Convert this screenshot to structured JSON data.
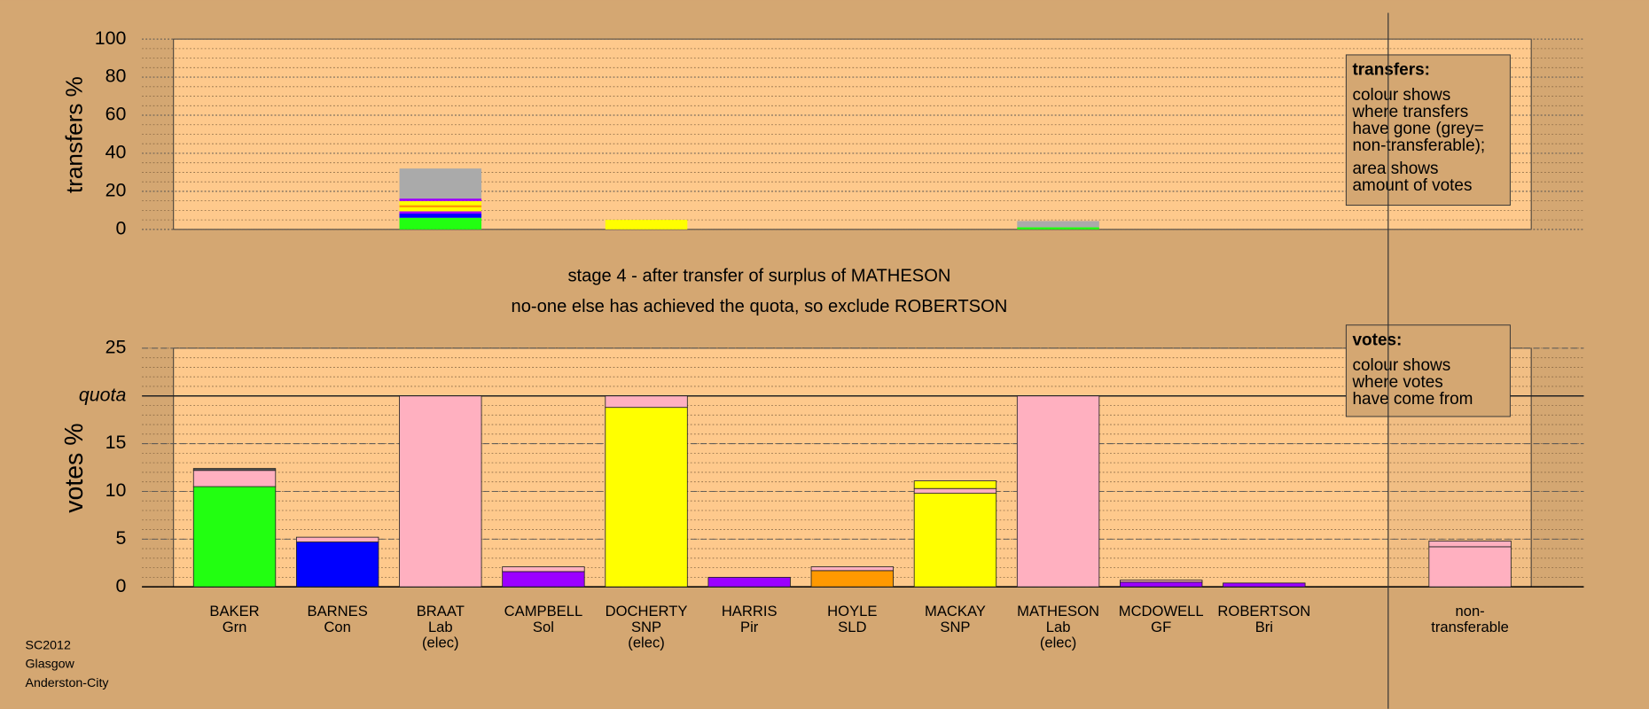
{
  "chart_data": [
    {
      "type": "stacked_bar",
      "y_label": "transfers %",
      "ylim": [
        0,
        100
      ],
      "yticks": [
        0,
        20,
        40,
        60,
        80,
        100
      ],
      "grid": true,
      "minor_grid_step": 5,
      "legend": {
        "title": "transfers:",
        "lines": [
          "colour shows",
          "where transfers",
          "have gone (grey=",
          "non-transferable);",
          "area shows",
          "amount of votes"
        ]
      },
      "stacks": [
        null,
        null,
        [
          {
            "value": 6.1,
            "color": "#22ff11"
          },
          {
            "value": 2.2,
            "color": "#0000ff"
          },
          {
            "value": 1.2,
            "color": "#9b00ff"
          },
          {
            "value": 2.1,
            "color": "#ffff00"
          },
          {
            "value": 1.1,
            "color": "#ff9900"
          },
          {
            "value": 2.2,
            "color": "#ffff00"
          },
          {
            "value": 1.3,
            "color": "#9b00ff"
          },
          {
            "value": 15.8,
            "color": "#aaaaaa"
          }
        ],
        null,
        [
          {
            "value": 5,
            "color": "#ffff00"
          }
        ],
        null,
        null,
        null,
        [
          {
            "value": 1.1,
            "color": "#22ff11"
          },
          {
            "value": 3.3,
            "color": "#aaaaaa"
          }
        ],
        null,
        null,
        null,
        null
      ]
    },
    {
      "type": "stacked_bar",
      "y_label": "votes %",
      "ylim": [
        0,
        25
      ],
      "yticks": [
        0,
        5,
        10,
        15,
        {
          "value": 20,
          "label": "quota"
        },
        25
      ],
      "grid": true,
      "minor_grid_step": 1,
      "legend": {
        "title": "votes:",
        "lines": [
          "colour shows",
          "where votes",
          "have come from"
        ]
      },
      "categories": [
        [
          "BAKER",
          "Grn"
        ],
        [
          "BARNES",
          "Con"
        ],
        [
          "BRAAT",
          "Lab",
          "(elec)"
        ],
        [
          "CAMPBELL",
          "Sol"
        ],
        [
          "DOCHERTY",
          "SNP",
          "(elec)"
        ],
        [
          "HARRIS",
          "Pir"
        ],
        [
          "HOYLE",
          "SLD"
        ],
        [
          "MACKAY",
          "SNP"
        ],
        [
          "MATHESON",
          "Lab",
          "(elec)"
        ],
        [
          "MCDOWELL",
          "GF"
        ],
        [
          "ROBERTSON",
          "Bri"
        ],
        null,
        [
          "non-",
          "transferable"
        ]
      ],
      "stacks": [
        [
          {
            "value": 10.5,
            "color": "#22ff11"
          },
          {
            "value": 1.7,
            "color": "#ffb0c0"
          },
          {
            "value": 0.2,
            "color": "#555555"
          }
        ],
        [
          {
            "value": 4.7,
            "color": "#0000ff"
          },
          {
            "value": 0.5,
            "color": "#ffb0c0"
          }
        ],
        [
          {
            "value": 20,
            "color": "#ffb0c0"
          }
        ],
        [
          {
            "value": 1.6,
            "color": "#9b00ff"
          },
          {
            "value": 0.5,
            "color": "#ffb0c0"
          }
        ],
        [
          {
            "value": 18.8,
            "color": "#ffff00"
          },
          {
            "value": 1.2,
            "color": "#ffb0c0"
          }
        ],
        [
          {
            "value": 1.0,
            "color": "#9b00ff"
          }
        ],
        [
          {
            "value": 1.7,
            "color": "#ff9900"
          },
          {
            "value": 0.4,
            "color": "#ffb0c0"
          }
        ],
        [
          {
            "value": 9.8,
            "color": "#ffff00"
          },
          {
            "value": 0.5,
            "color": "#ffb0c0"
          },
          {
            "value": 0.8,
            "color": "#ffff00"
          }
        ],
        [
          {
            "value": 20,
            "color": "#ffb0c0"
          }
        ],
        [
          {
            "value": 0.5,
            "color": "#9b00ff"
          },
          {
            "value": 0.2,
            "color": "#ffb0c0"
          }
        ],
        [
          {
            "value": 0.4,
            "color": "#9b00ff"
          }
        ],
        null,
        [
          {
            "value": 4.2,
            "color": "#ffb0c0"
          },
          {
            "value": 0.6,
            "color": "#ffb0c0"
          }
        ]
      ]
    }
  ],
  "notes": [
    "stage 4 - after transfer of surplus of MATHESON",
    "no-one else has achieved the quota, so exclude ROBERTSON"
  ],
  "footer": [
    "SC2012",
    "Glasgow",
    "Anderston-City"
  ]
}
